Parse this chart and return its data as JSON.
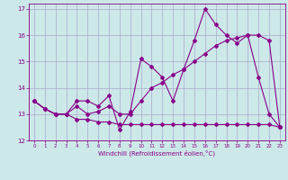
{
  "xlabel": "Windchill (Refroidissement éolien,°C)",
  "xlim": [
    -0.5,
    23.5
  ],
  "ylim": [
    12,
    17.2
  ],
  "yticks": [
    12,
    13,
    14,
    15,
    16,
    17
  ],
  "xticks": [
    0,
    1,
    2,
    3,
    4,
    5,
    6,
    7,
    8,
    9,
    10,
    11,
    12,
    13,
    14,
    15,
    16,
    17,
    18,
    19,
    20,
    21,
    22,
    23
  ],
  "bg_color": "#cce8e8",
  "grid_color": "#aaaacc",
  "line_color": "#880088",
  "s1": [
    13.5,
    13.2,
    13.0,
    13.0,
    13.5,
    13.5,
    13.3,
    13.7,
    12.4,
    13.1,
    15.1,
    14.8,
    14.4,
    13.5,
    14.7,
    15.8,
    17.0,
    16.4,
    16.0,
    15.7,
    16.0,
    14.4,
    13.0,
    12.5
  ],
  "s2": [
    13.5,
    13.2,
    13.0,
    13.0,
    13.3,
    13.0,
    13.1,
    13.3,
    13.0,
    13.0,
    13.5,
    14.0,
    14.2,
    14.5,
    14.7,
    15.0,
    15.3,
    15.6,
    15.8,
    15.9,
    16.0,
    16.0,
    15.8,
    12.5
  ],
  "s3": [
    13.5,
    13.2,
    13.0,
    13.0,
    12.8,
    12.8,
    12.7,
    12.7,
    12.6,
    12.6,
    12.6,
    12.6,
    12.6,
    12.6,
    12.6,
    12.6,
    12.6,
    12.6,
    12.6,
    12.6,
    12.6,
    12.6,
    12.6,
    12.5
  ]
}
